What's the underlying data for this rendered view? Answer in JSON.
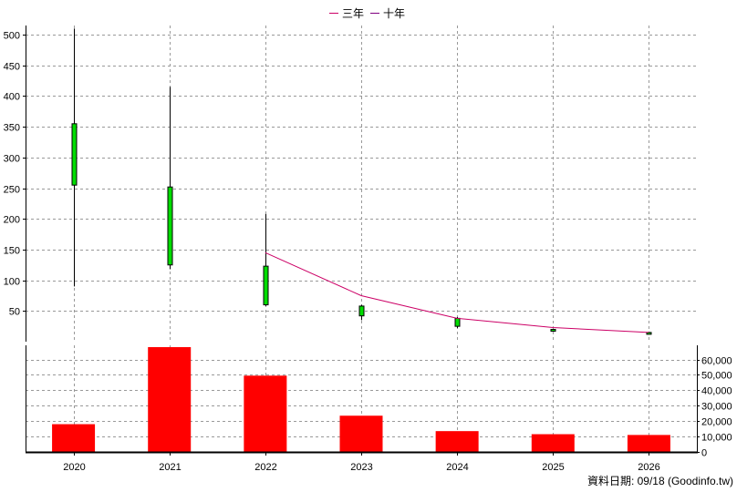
{
  "chart_data": [
    {
      "type": "candlestick",
      "legend": {
        "placement": "top-center",
        "items": [
          {
            "label": "三年",
            "color": "#cc0066"
          },
          {
            "label": "十年",
            "color": "#800080"
          }
        ]
      },
      "categories": [
        "2020",
        "2021",
        "2022",
        "2023",
        "2024",
        "2025",
        "2026"
      ],
      "y_ticks": [
        50,
        100,
        150,
        200,
        250,
        300,
        350,
        400,
        450,
        500
      ],
      "ylim": [
        0,
        515
      ],
      "grid": true,
      "candles": [
        {
          "x": "2020",
          "open": 255,
          "close": 355,
          "high": 510,
          "low": 90
        },
        {
          "x": "2021",
          "open": 125,
          "close": 252,
          "high": 415,
          "low": 118
        },
        {
          "x": "2022",
          "open": 60,
          "close": 123,
          "high": 208,
          "low": 58
        },
        {
          "x": "2023",
          "open": 42,
          "close": 58,
          "high": 60,
          "low": 35
        },
        {
          "x": "2024",
          "open": 25,
          "close": 38,
          "high": 40,
          "low": 22
        },
        {
          "x": "2025",
          "open": 18,
          "close": 20,
          "high": 21,
          "low": 17
        },
        {
          "x": "2026",
          "open": 13,
          "close": 15,
          "high": 16,
          "low": 13
        }
      ],
      "candle_color": "#00dd00",
      "series": [
        {
          "name": "三年",
          "color": "#cc0066",
          "points": [
            {
              "x": "2022",
              "y": 145
            },
            {
              "x": "2023",
              "y": 75
            },
            {
              "x": "2024",
              "y": 38
            },
            {
              "x": "2025",
              "y": 23
            },
            {
              "x": "2026",
              "y": 15
            }
          ]
        }
      ]
    },
    {
      "type": "bar",
      "categories": [
        "2020",
        "2021",
        "2022",
        "2023",
        "2024",
        "2025",
        "2026"
      ],
      "values": [
        18000,
        68000,
        49500,
        23500,
        13500,
        11500,
        11000
      ],
      "y_ticks": [
        0,
        10000,
        20000,
        30000,
        40000,
        50000,
        60000
      ],
      "y_tick_labels": [
        "0",
        "10,000",
        "20,000",
        "30,000",
        "40,000",
        "50,000",
        "60,000"
      ],
      "ylim": [
        0,
        68000
      ],
      "axis_side": "right",
      "bar_color": "#ff0000",
      "grid": true
    }
  ],
  "footer": "資料日期: 09/18  (Goodinfo.tw)"
}
